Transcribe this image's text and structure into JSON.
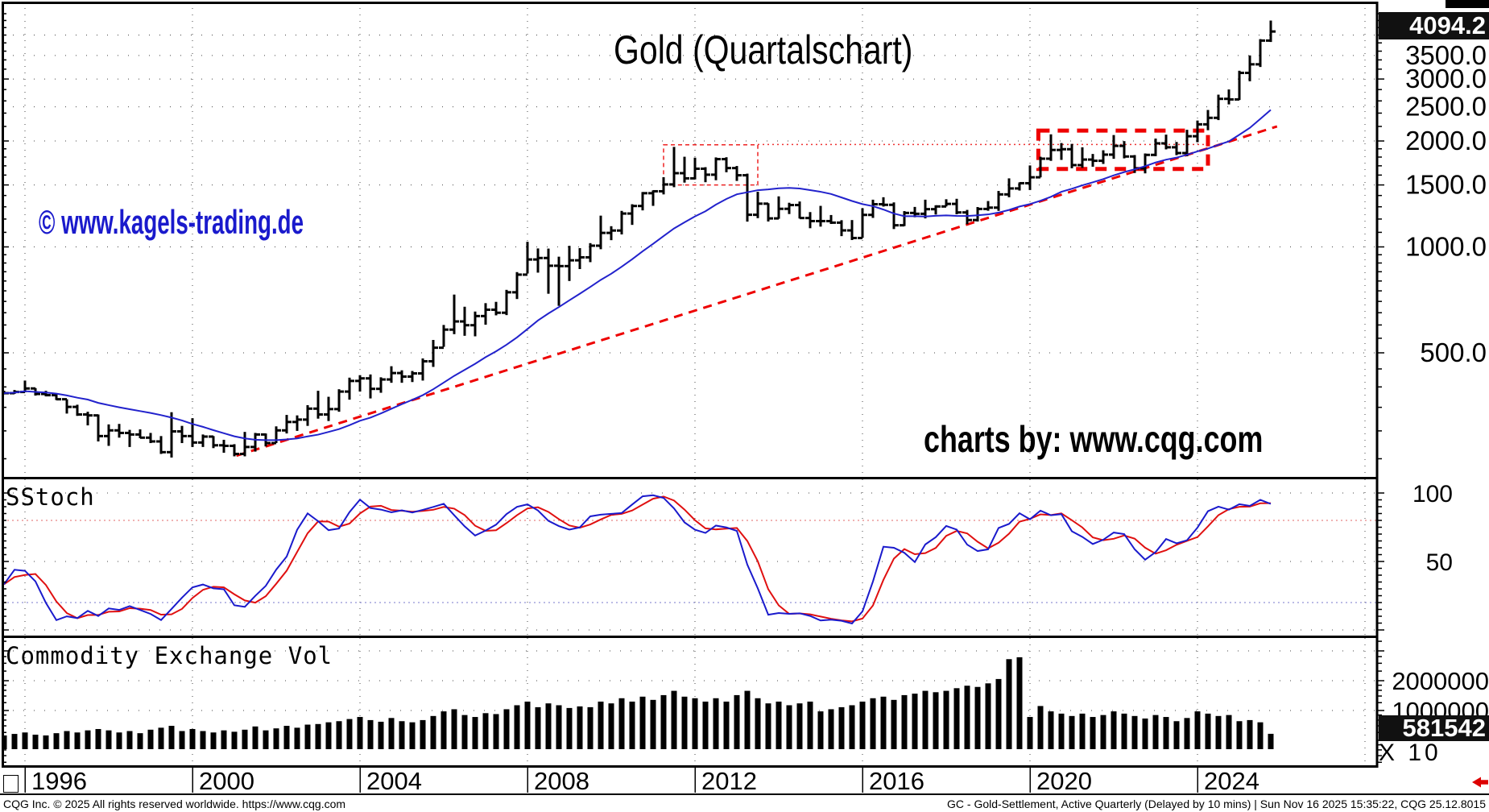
{
  "title": "Gold (Quartalschart)",
  "watermarks": {
    "kagels": "© www.kagels-trading.de",
    "cqg": "charts by: www.cqg.com"
  },
  "panels": {
    "price_label_last": "4094.2",
    "sstoch_label": "SStoch",
    "volume_label": "Commodity Exchange Vol",
    "volume_last": "581542",
    "volume_multiplier": "X 10"
  },
  "status_bar": {
    "left": "CQG Inc. © 2025 All rights reserved worldwide. https://www.cqg.com",
    "right": "GC - Gold-Settlement, Active Quarterly (Delayed by 10 mins) | Sun Nov 16 2025 15:35:22, CQG 25.12.8015"
  },
  "colors": {
    "bars": "#000000",
    "ma_line": "#2222cc",
    "trendline": "#ee0000",
    "annotation_red": "#ee0000",
    "stoch_k": "#1a1acc",
    "stoch_d": "#e01010",
    "stoch_over_line": "#e06666",
    "stoch_under_line": "#7777cc",
    "grid": "#444444",
    "watermark_blue": "#1a1acc",
    "highlight_box_bg": "#111111",
    "highlight_box_text": "#ffffff"
  },
  "chart_data": {
    "type": "bar",
    "subtype": "ohlc-quarterly",
    "title": "Gold (Quartalschart)",
    "x_axis": {
      "start_year": 1995.5,
      "bar_interval_years": 0.25,
      "labels": [
        "1996",
        "2000",
        "2004",
        "2008",
        "2012",
        "2016",
        "2020",
        "2024"
      ],
      "label_years": [
        1996,
        2000,
        2004,
        2008,
        2012,
        2016,
        2020,
        2024
      ],
      "gridline_years": [
        1996,
        2000,
        2004,
        2008,
        2012,
        2016,
        2020,
        2024,
        2028
      ]
    },
    "price_panel": {
      "scale": "log",
      "ylim": [
        225,
        4800
      ],
      "scale_labels": [
        {
          "text": "3500.0",
          "value": 3500
        },
        {
          "text": "3000.0",
          "value": 3000
        },
        {
          "text": "2500.0",
          "value": 2500
        },
        {
          "text": "2000.0",
          "value": 2000
        },
        {
          "text": "1500.0",
          "value": 1500
        },
        {
          "text": "1000.0",
          "value": 1000
        },
        {
          "text": "500.0",
          "value": 500
        }
      ],
      "gridline_values": [
        4000,
        3500,
        3000,
        2500,
        2000,
        1500,
        1000,
        500
      ],
      "last_price": 4094.2,
      "ma_period": 16,
      "bars_hlc": [
        [
          390,
          381,
          384
        ],
        [
          392,
          382,
          387
        ],
        [
          417,
          386,
          396
        ],
        [
          397,
          378,
          382
        ],
        [
          390,
          376,
          379
        ],
        [
          383,
          367,
          369
        ],
        [
          369,
          336,
          351
        ],
        [
          356,
          331,
          334
        ],
        [
          340,
          311,
          332
        ],
        [
          334,
          280,
          290
        ],
        [
          313,
          272,
          301
        ],
        [
          314,
          287,
          296
        ],
        [
          302,
          270,
          293
        ],
        [
          303,
          286,
          287
        ],
        [
          296,
          277,
          280
        ],
        [
          290,
          258,
          261
        ],
        [
          339,
          252,
          299
        ],
        [
          310,
          277,
          290
        ],
        [
          326,
          270,
          278
        ],
        [
          293,
          270,
          289
        ],
        [
          290,
          268,
          273
        ],
        [
          283,
          260,
          272
        ],
        [
          275,
          254,
          258
        ],
        [
          298,
          254,
          270
        ],
        [
          296,
          262,
          293
        ],
        [
          295,
          271,
          277
        ],
        [
          309,
          277,
          301
        ],
        [
          333,
          295,
          318
        ],
        [
          332,
          300,
          323
        ],
        [
          355,
          310,
          347
        ],
        [
          390,
          325,
          334
        ],
        [
          375,
          320,
          346
        ],
        [
          394,
          340,
          388
        ],
        [
          425,
          368,
          416
        ],
        [
          432,
          388,
          423
        ],
        [
          434,
          371,
          395
        ],
        [
          426,
          385,
          420
        ],
        [
          458,
          411,
          438
        ],
        [
          446,
          411,
          428
        ],
        [
          444,
          413,
          437
        ],
        [
          482,
          417,
          473
        ],
        [
          544,
          456,
          517
        ],
        [
          600,
          520,
          582
        ],
        [
          732,
          565,
          614
        ],
        [
          676,
          559,
          599
        ],
        [
          655,
          557,
          636
        ],
        [
          692,
          601,
          663
        ],
        [
          698,
          639,
          650
        ],
        [
          755,
          640,
          743
        ],
        [
          848,
          711,
          834
        ],
        [
          1034,
          840,
          921
        ],
        [
          990,
          845,
          930
        ],
        [
          989,
          736,
          884
        ],
        [
          938,
          680,
          882
        ],
        [
          1007,
          800,
          916
        ],
        [
          992,
          865,
          934
        ],
        [
          1025,
          905,
          1008
        ],
        [
          1227,
          985,
          1096
        ],
        [
          1145,
          1045,
          1113
        ],
        [
          1266,
          1085,
          1244
        ],
        [
          1322,
          1155,
          1307
        ],
        [
          1432,
          1270,
          1421
        ],
        [
          1448,
          1308,
          1439
        ],
        [
          1578,
          1410,
          1505
        ],
        [
          1924,
          1478,
          1620
        ],
        [
          1804,
          1523,
          1566
        ],
        [
          1793,
          1555,
          1668
        ],
        [
          1685,
          1527,
          1604
        ],
        [
          1796,
          1547,
          1776
        ],
        [
          1798,
          1630,
          1675
        ],
        [
          1698,
          1540,
          1598
        ],
        [
          1615,
          1180,
          1234
        ],
        [
          1434,
          1207,
          1327
        ],
        [
          1331,
          1181,
          1205
        ],
        [
          1392,
          1202,
          1283
        ],
        [
          1335,
          1240,
          1315
        ],
        [
          1346,
          1204,
          1208
        ],
        [
          1256,
          1130,
          1184
        ],
        [
          1308,
          1142,
          1184
        ],
        [
          1232,
          1162,
          1172
        ],
        [
          1191,
          1073,
          1114
        ],
        [
          1192,
          1046,
          1060
        ],
        [
          1288,
          1061,
          1233
        ],
        [
          1362,
          1209,
          1322
        ],
        [
          1384,
          1302,
          1317
        ],
        [
          1338,
          1124,
          1152
        ],
        [
          1264,
          1146,
          1249
        ],
        [
          1299,
          1214,
          1242
        ],
        [
          1362,
          1205,
          1280
        ],
        [
          1313,
          1236,
          1303
        ],
        [
          1366,
          1303,
          1325
        ],
        [
          1370,
          1238,
          1253
        ],
        [
          1274,
          1160,
          1192
        ],
        [
          1298,
          1181,
          1282
        ],
        [
          1350,
          1267,
          1293
        ],
        [
          1442,
          1266,
          1410
        ],
        [
          1566,
          1384,
          1466
        ],
        [
          1525,
          1446,
          1517
        ],
        [
          1704,
          1451,
          1577
        ],
        [
          1804,
          1576,
          1781
        ],
        [
          2089,
          1756,
          1886
        ],
        [
          1973,
          1767,
          1895
        ],
        [
          1962,
          1673,
          1708
        ],
        [
          1919,
          1677,
          1771
        ],
        [
          1837,
          1690,
          1757
        ],
        [
          1882,
          1721,
          1829
        ],
        [
          2079,
          1780,
          1937
        ],
        [
          1998,
          1785,
          1807
        ],
        [
          1824,
          1622,
          1672
        ],
        [
          1843,
          1618,
          1826
        ],
        [
          2032,
          1811,
          1969
        ],
        [
          2085,
          1893,
          1919
        ],
        [
          1987,
          1823,
          1848
        ],
        [
          2152,
          1810,
          2063
        ],
        [
          2286,
          1984,
          2230
        ],
        [
          2450,
          2146,
          2327
        ],
        [
          2708,
          2293,
          2635
        ],
        [
          2802,
          2541,
          2625
        ],
        [
          3167,
          2615,
          3123
        ],
        [
          3500,
          2956,
          3303
        ],
        [
          3895,
          3246,
          3858
        ],
        [
          4398,
          3823,
          4094.2
        ]
      ],
      "annotations": {
        "trendline": {
          "from": {
            "t": 2001.05,
            "price": 255
          },
          "to": {
            "t": 2025.9,
            "price": 2200
          }
        },
        "rect_thin": {
          "t0": 2011.25,
          "t1": 2013.5,
          "price_top": 1950,
          "price_bottom": 1500
        },
        "rect_thick": {
          "t0": 2020.2,
          "t1": 2024.25,
          "price_top": 2140,
          "price_bottom": 1665
        },
        "resistance_dotted": {
          "price": 1955,
          "t0": 2013.5,
          "t1": 2024.3
        }
      }
    },
    "stoch_panel": {
      "label": "SStoch",
      "scale_labels": [
        {
          "text": "100",
          "value": 100
        },
        {
          "text": "50",
          "value": 50
        }
      ],
      "gridline_values": [
        100,
        50,
        0
      ],
      "overbought": 80,
      "oversold": 20,
      "period": 12,
      "k_smooth": 3,
      "d_smooth": 3
    },
    "volume_panel": {
      "label": "Commodity Exchange Vol",
      "scale": "log",
      "scale_labels": [
        {
          "text": "2000000",
          "value": 2000000
        },
        {
          "text": "1000000",
          "value": 1000000
        }
      ],
      "gridline_values": [
        4000000,
        2000000,
        1000000
      ],
      "multiplier_label": "X 10",
      "last_volume": 581542,
      "values": [
        560000,
        580000,
        600000,
        570000,
        560000,
        590000,
        620000,
        600000,
        630000,
        650000,
        630000,
        600000,
        620000,
        590000,
        640000,
        670000,
        700000,
        620000,
        650000,
        620000,
        600000,
        630000,
        610000,
        640000,
        690000,
        630000,
        660000,
        700000,
        670000,
        720000,
        730000,
        760000,
        780000,
        820000,
        860000,
        800000,
        770000,
        840000,
        780000,
        760000,
        800000,
        880000,
        980000,
        1030000,
        900000,
        860000,
        940000,
        920000,
        1030000,
        1130000,
        1230000,
        1080000,
        1180000,
        1130000,
        1060000,
        1100000,
        1080000,
        1230000,
        1180000,
        1330000,
        1230000,
        1380000,
        1280000,
        1430000,
        1580000,
        1380000,
        1330000,
        1230000,
        1330000,
        1230000,
        1430000,
        1580000,
        1330000,
        1180000,
        1230000,
        1130000,
        1180000,
        1230000,
        980000,
        1030000,
        1080000,
        1130000,
        1230000,
        1330000,
        1380000,
        1280000,
        1430000,
        1480000,
        1580000,
        1530000,
        1580000,
        1680000,
        1780000,
        1730000,
        1880000,
        2080000,
        3300000,
        3450000,
        860000,
        1110000,
        980000,
        930000,
        880000,
        930000,
        860000,
        900000,
        980000,
        930000,
        880000,
        830000,
        900000,
        860000,
        780000,
        840000,
        980000,
        930000,
        880000,
        900000,
        780000,
        800000,
        760000,
        581542
      ]
    }
  }
}
